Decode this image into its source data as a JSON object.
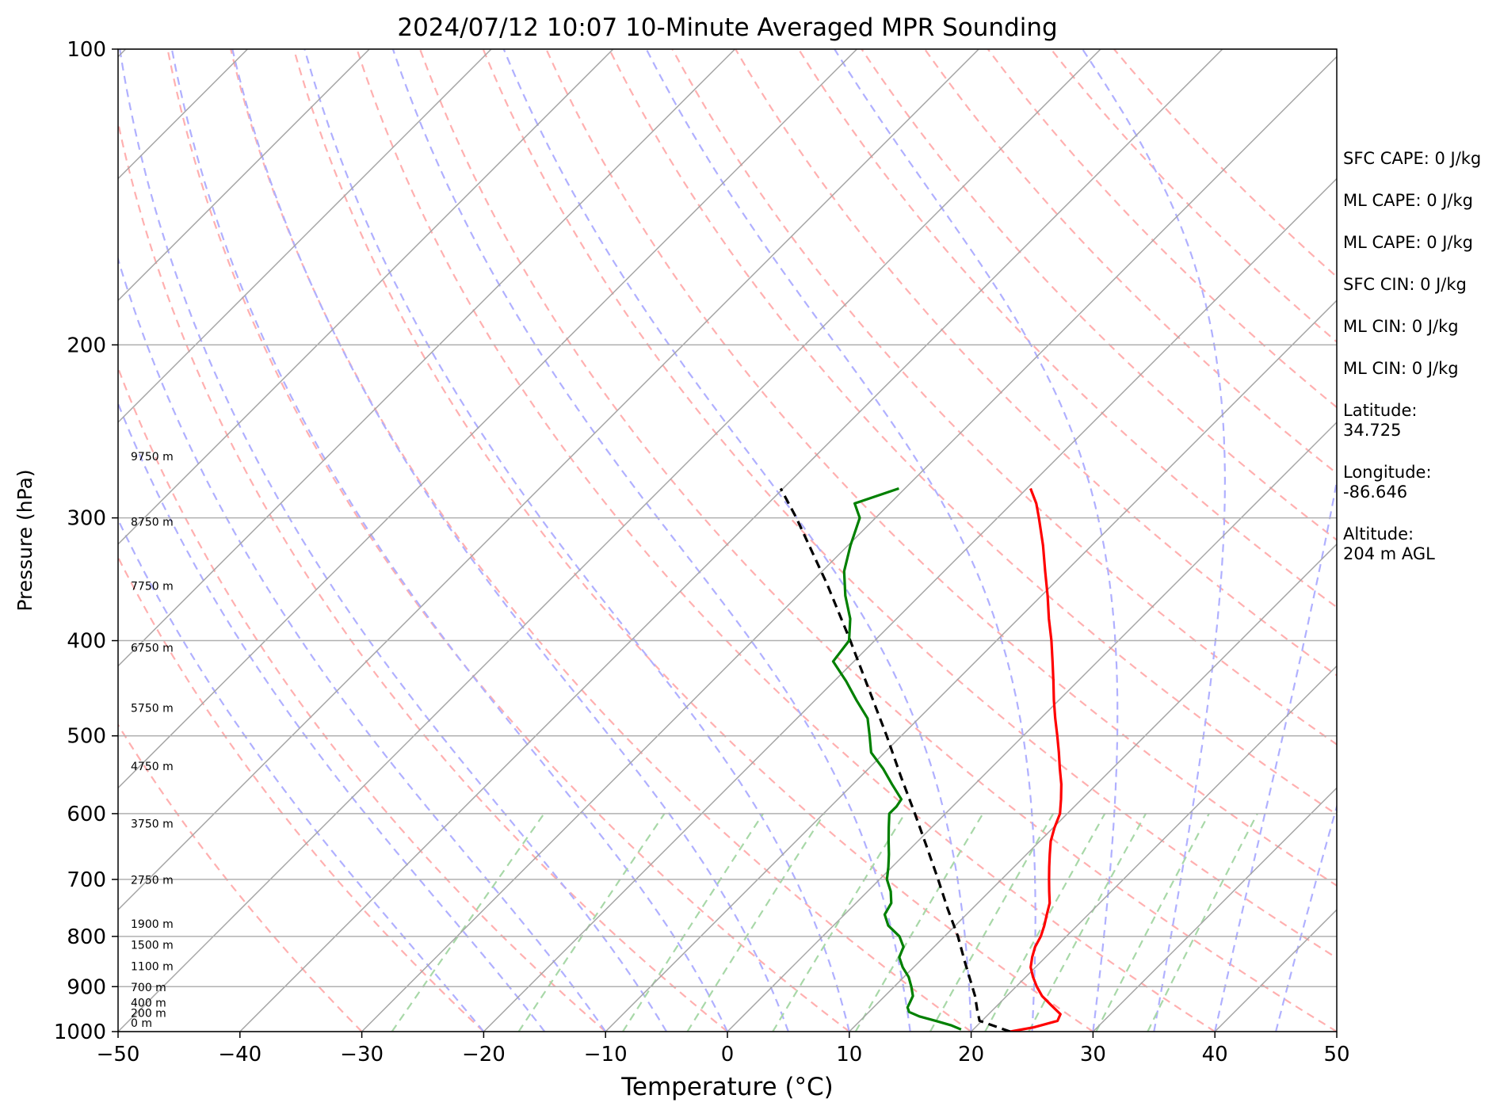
{
  "chart_data": {
    "type": "line",
    "title": "2024/07/12 10:07 10-Minute Averaged MPR Sounding",
    "xlabel": "Temperature (°C)",
    "ylabel": "Pressure (hPa)",
    "xlim": [
      -50,
      50
    ],
    "ylim": [
      1000,
      100
    ],
    "y_scale": "log",
    "skew": "skew-T (isotherms slanted)",
    "grid": "horizontal gridlines at pressure ticks",
    "x_ticks": [
      -50,
      -40,
      -30,
      -20,
      -10,
      0,
      10,
      20,
      30,
      40,
      50
    ],
    "x_tick_labels": [
      "−50",
      "−40",
      "−30",
      "−20",
      "−10",
      "0",
      "10",
      "20",
      "30",
      "40",
      "50"
    ],
    "y_ticks": [
      100,
      200,
      300,
      400,
      500,
      600,
      700,
      800,
      900,
      1000
    ],
    "y_tick_labels": [
      "100",
      "200",
      "300",
      "400",
      "500",
      "600",
      "700",
      "800",
      "900",
      "1000"
    ],
    "background_lines": {
      "isotherms_color": "#a6a6a6",
      "dry_adiabats_color": "#ffb0b0",
      "moist_adiabats_color": "#b0b0ff",
      "mixing_ratio_color": "#a8d8a8"
    },
    "series": [
      {
        "color": "#ff0000",
        "style": "solid",
        "points": [
          [
            1000,
            23.2
          ],
          [
            990,
            24.8
          ],
          [
            975,
            26.2
          ],
          [
            960,
            25.9
          ],
          [
            940,
            24.4
          ],
          [
            920,
            22.9
          ],
          [
            900,
            21.7
          ],
          [
            880,
            20.6
          ],
          [
            860,
            19.6
          ],
          [
            840,
            18.9
          ],
          [
            820,
            18.3
          ],
          [
            800,
            17.9
          ],
          [
            780,
            17.3
          ],
          [
            760,
            16.6
          ],
          [
            740,
            15.9
          ],
          [
            720,
            14.9
          ],
          [
            700,
            13.9
          ],
          [
            680,
            12.9
          ],
          [
            660,
            11.9
          ],
          [
            640,
            10.9
          ],
          [
            620,
            10.1
          ],
          [
            600,
            9.4
          ],
          [
            580,
            8.3
          ],
          [
            560,
            7.1
          ],
          [
            540,
            5.7
          ],
          [
            520,
            4.3
          ],
          [
            500,
            2.8
          ],
          [
            480,
            1.2
          ],
          [
            460,
            -0.4
          ],
          [
            440,
            -2.0
          ],
          [
            420,
            -3.7
          ],
          [
            400,
            -5.5
          ],
          [
            380,
            -7.5
          ],
          [
            360,
            -9.5
          ],
          [
            340,
            -11.7
          ],
          [
            320,
            -14.0
          ],
          [
            300,
            -16.6
          ],
          [
            290,
            -18.0
          ],
          [
            280,
            -19.7
          ]
        ]
      },
      {
        "color": "#000000",
        "style": "dashed",
        "points": [
          [
            1000,
            23.2
          ],
          [
            975,
            19.8
          ],
          [
            950,
            18.7
          ],
          [
            920,
            17.4
          ],
          [
            900,
            16.4
          ],
          [
            850,
            13.8
          ],
          [
            800,
            11.1
          ],
          [
            750,
            8.0
          ],
          [
            700,
            4.8
          ],
          [
            650,
            1.3
          ],
          [
            600,
            -2.5
          ],
          [
            550,
            -6.7
          ],
          [
            500,
            -11.2
          ],
          [
            450,
            -16.3
          ],
          [
            400,
            -22.0
          ],
          [
            350,
            -28.6
          ],
          [
            300,
            -36.5
          ],
          [
            280,
            -40.2
          ]
        ]
      },
      {
        "color": "#008000",
        "style": "solid",
        "points": [
          [
            995,
            19.0
          ],
          [
            985,
            17.8
          ],
          [
            975,
            16.2
          ],
          [
            965,
            14.5
          ],
          [
            955,
            13.3
          ],
          [
            945,
            12.8
          ],
          [
            935,
            12.6
          ],
          [
            920,
            12.3
          ],
          [
            900,
            11.4
          ],
          [
            880,
            10.4
          ],
          [
            860,
            9.1
          ],
          [
            840,
            8.0
          ],
          [
            820,
            7.5
          ],
          [
            800,
            6.3
          ],
          [
            780,
            4.5
          ],
          [
            760,
            3.3
          ],
          [
            740,
            2.9
          ],
          [
            720,
            1.9
          ],
          [
            700,
            0.6
          ],
          [
            680,
            -0.3
          ],
          [
            660,
            -1.3
          ],
          [
            640,
            -2.4
          ],
          [
            620,
            -3.5
          ],
          [
            600,
            -4.6
          ],
          [
            590,
            -4.6
          ],
          [
            580,
            -4.8
          ],
          [
            560,
            -6.8
          ],
          [
            540,
            -8.8
          ],
          [
            520,
            -11.1
          ],
          [
            500,
            -12.6
          ],
          [
            480,
            -14.2
          ],
          [
            460,
            -16.6
          ],
          [
            440,
            -19.0
          ],
          [
            420,
            -21.7
          ],
          [
            400,
            -22.1
          ],
          [
            380,
            -23.8
          ],
          [
            360,
            -26.1
          ],
          [
            340,
            -28.2
          ],
          [
            320,
            -29.8
          ],
          [
            300,
            -31.3
          ],
          [
            290,
            -32.9
          ],
          [
            280,
            -30.5
          ]
        ]
      }
    ],
    "height_labels": [
      "0 m",
      "200 m",
      "400 m",
      "700 m",
      "1100 m",
      "1500 m",
      "1900 m",
      "2750 m",
      "3750 m",
      "4750 m",
      "5750 m",
      "6750 m",
      "7750 m",
      "8750 m",
      "9750 m"
    ],
    "height_label_pressures": [
      1000,
      977,
      954,
      920,
      876,
      833,
      793,
      715,
      627,
      548,
      478,
      415,
      359,
      309,
      265
    ]
  },
  "side_info": [
    "SFC CAPE: 0 J/kg",
    "ML CAPE: 0 J/kg",
    "ML CAPE: 0 J/kg",
    "SFC CIN: 0 J/kg",
    "ML CIN: 0 J/kg",
    "ML CIN: 0 J/kg",
    "Latitude:\n34.725",
    "Longitude:\n-86.646",
    "Altitude:\n204 m AGL"
  ]
}
